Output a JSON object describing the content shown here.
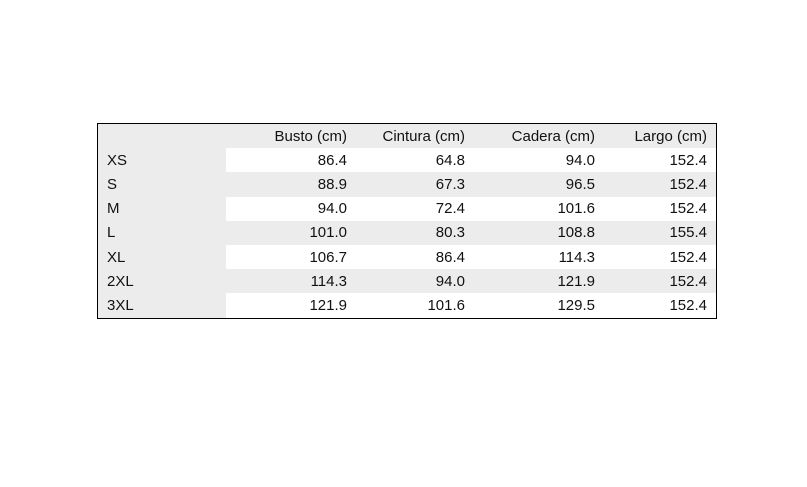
{
  "table": {
    "headers": [
      "",
      "Busto (cm)",
      "Cintura (cm)",
      "Cadera (cm)",
      "Largo (cm)"
    ],
    "rows": [
      [
        "XS",
        "86.4",
        "64.8",
        "94.0",
        "152.4"
      ],
      [
        "S",
        "88.9",
        "67.3",
        "96.5",
        "152.4"
      ],
      [
        "M",
        "94.0",
        "72.4",
        "101.6",
        "152.4"
      ],
      [
        "L",
        "101.0",
        "80.3",
        "108.8",
        "155.4"
      ],
      [
        "XL",
        "106.7",
        "86.4",
        "114.3",
        "152.4"
      ],
      [
        "2XL",
        "114.3",
        "94.0",
        "121.9",
        "152.4"
      ],
      [
        "3XL",
        "121.9",
        "101.6",
        "129.5",
        "152.4"
      ]
    ]
  },
  "colors": {
    "shade": "#ececec",
    "border": "#000000"
  }
}
